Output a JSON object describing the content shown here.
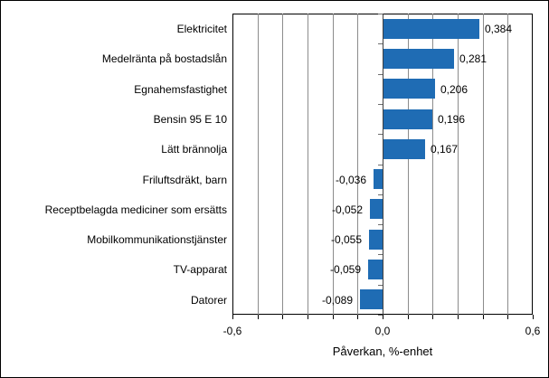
{
  "chart_data": {
    "type": "bar",
    "orientation": "horizontal",
    "title": "",
    "xlabel": "Påverkan, %-enhet",
    "ylabel": "",
    "categories": [
      "Elektricitet",
      "Medelränta på bostadslån",
      "Egnahemsfastighet",
      "Bensin 95 E 10",
      "Lätt brännolja",
      "Friluftsdräkt, barn",
      "Receptbelagda mediciner som ersätts",
      "Mobilkommunikationstjänster",
      "TV-apparat",
      "Datorer"
    ],
    "values": [
      0.384,
      0.281,
      0.206,
      0.196,
      0.167,
      -0.036,
      -0.052,
      -0.055,
      -0.059,
      -0.089
    ],
    "value_labels": [
      "0,384",
      "0,281",
      "0,206",
      "0,196",
      "0,167",
      "-0,036",
      "-0,052",
      "-0,055",
      "-0,059",
      "-0,089"
    ],
    "xlim": [
      -0.6,
      0.6
    ],
    "x_tick_values": [
      -0.6,
      0.0,
      0.6
    ],
    "x_tick_labels": [
      "-0,6",
      "0,0",
      "0,6"
    ],
    "gridline_step": 0.1,
    "grid": true,
    "legend": false,
    "colors": {
      "bar": "#1f6cb4",
      "gridline": "#8c8c8c",
      "axis": "#404040",
      "border": "#000000",
      "background": "#ffffff",
      "text": "#000000"
    }
  }
}
